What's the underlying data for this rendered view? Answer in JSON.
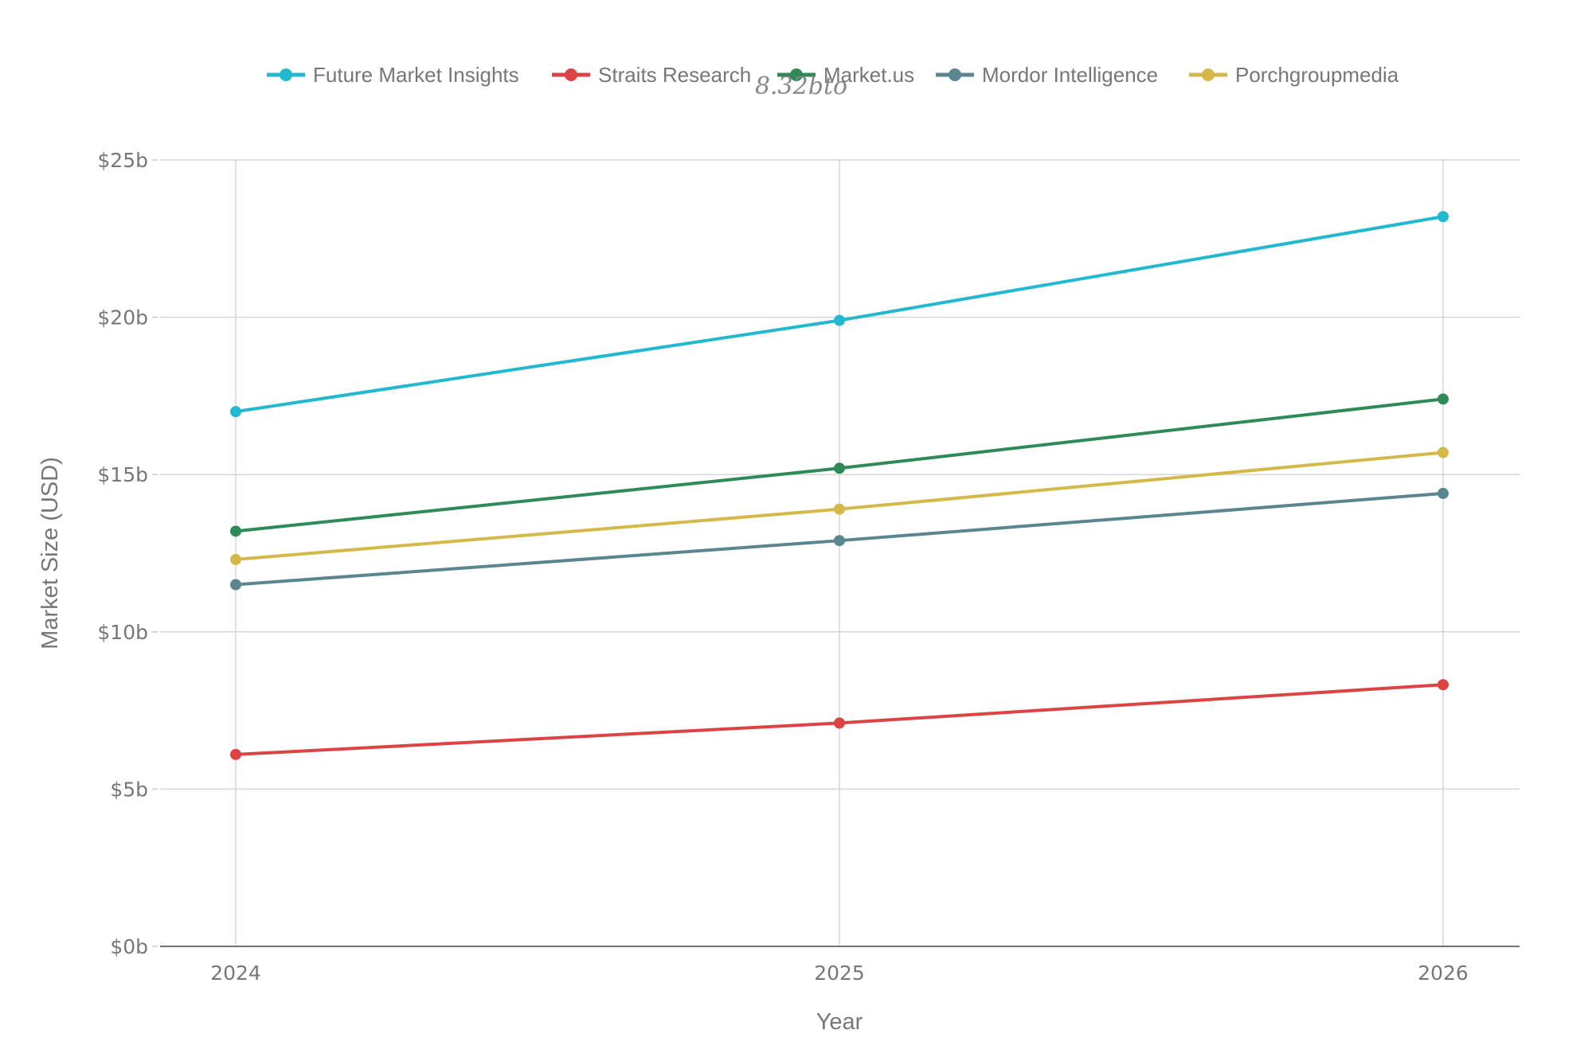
{
  "chart_data": {
    "type": "line",
    "title": "8.32bto",
    "xlabel": "Year",
    "ylabel": "Market Size (USD)",
    "x": [
      "2024",
      "2025",
      "2026"
    ],
    "ylim": [
      0,
      25
    ],
    "yticks": [
      "$0b",
      "$5b",
      "$10b",
      "$15b",
      "$20b",
      "$25b"
    ],
    "ytick_values": [
      0,
      5,
      10,
      15,
      20,
      25
    ],
    "grid": true,
    "legend_position": "top",
    "series": [
      {
        "name": "Future Market Insights",
        "color": "#22b8cf",
        "values": [
          17.0,
          19.9,
          23.2
        ]
      },
      {
        "name": "Straits Research",
        "color": "#dc4343",
        "values": [
          6.1,
          7.1,
          8.32
        ]
      },
      {
        "name": "Market.us",
        "color": "#2e8b57",
        "values": [
          13.2,
          15.2,
          17.4
        ]
      },
      {
        "name": "Mordor Intelligence",
        "color": "#5a8690",
        "values": [
          11.5,
          12.9,
          14.4
        ]
      },
      {
        "name": "Porchgroupmedia",
        "color": "#d4b94a",
        "values": [
          12.3,
          13.9,
          15.7
        ]
      }
    ]
  }
}
